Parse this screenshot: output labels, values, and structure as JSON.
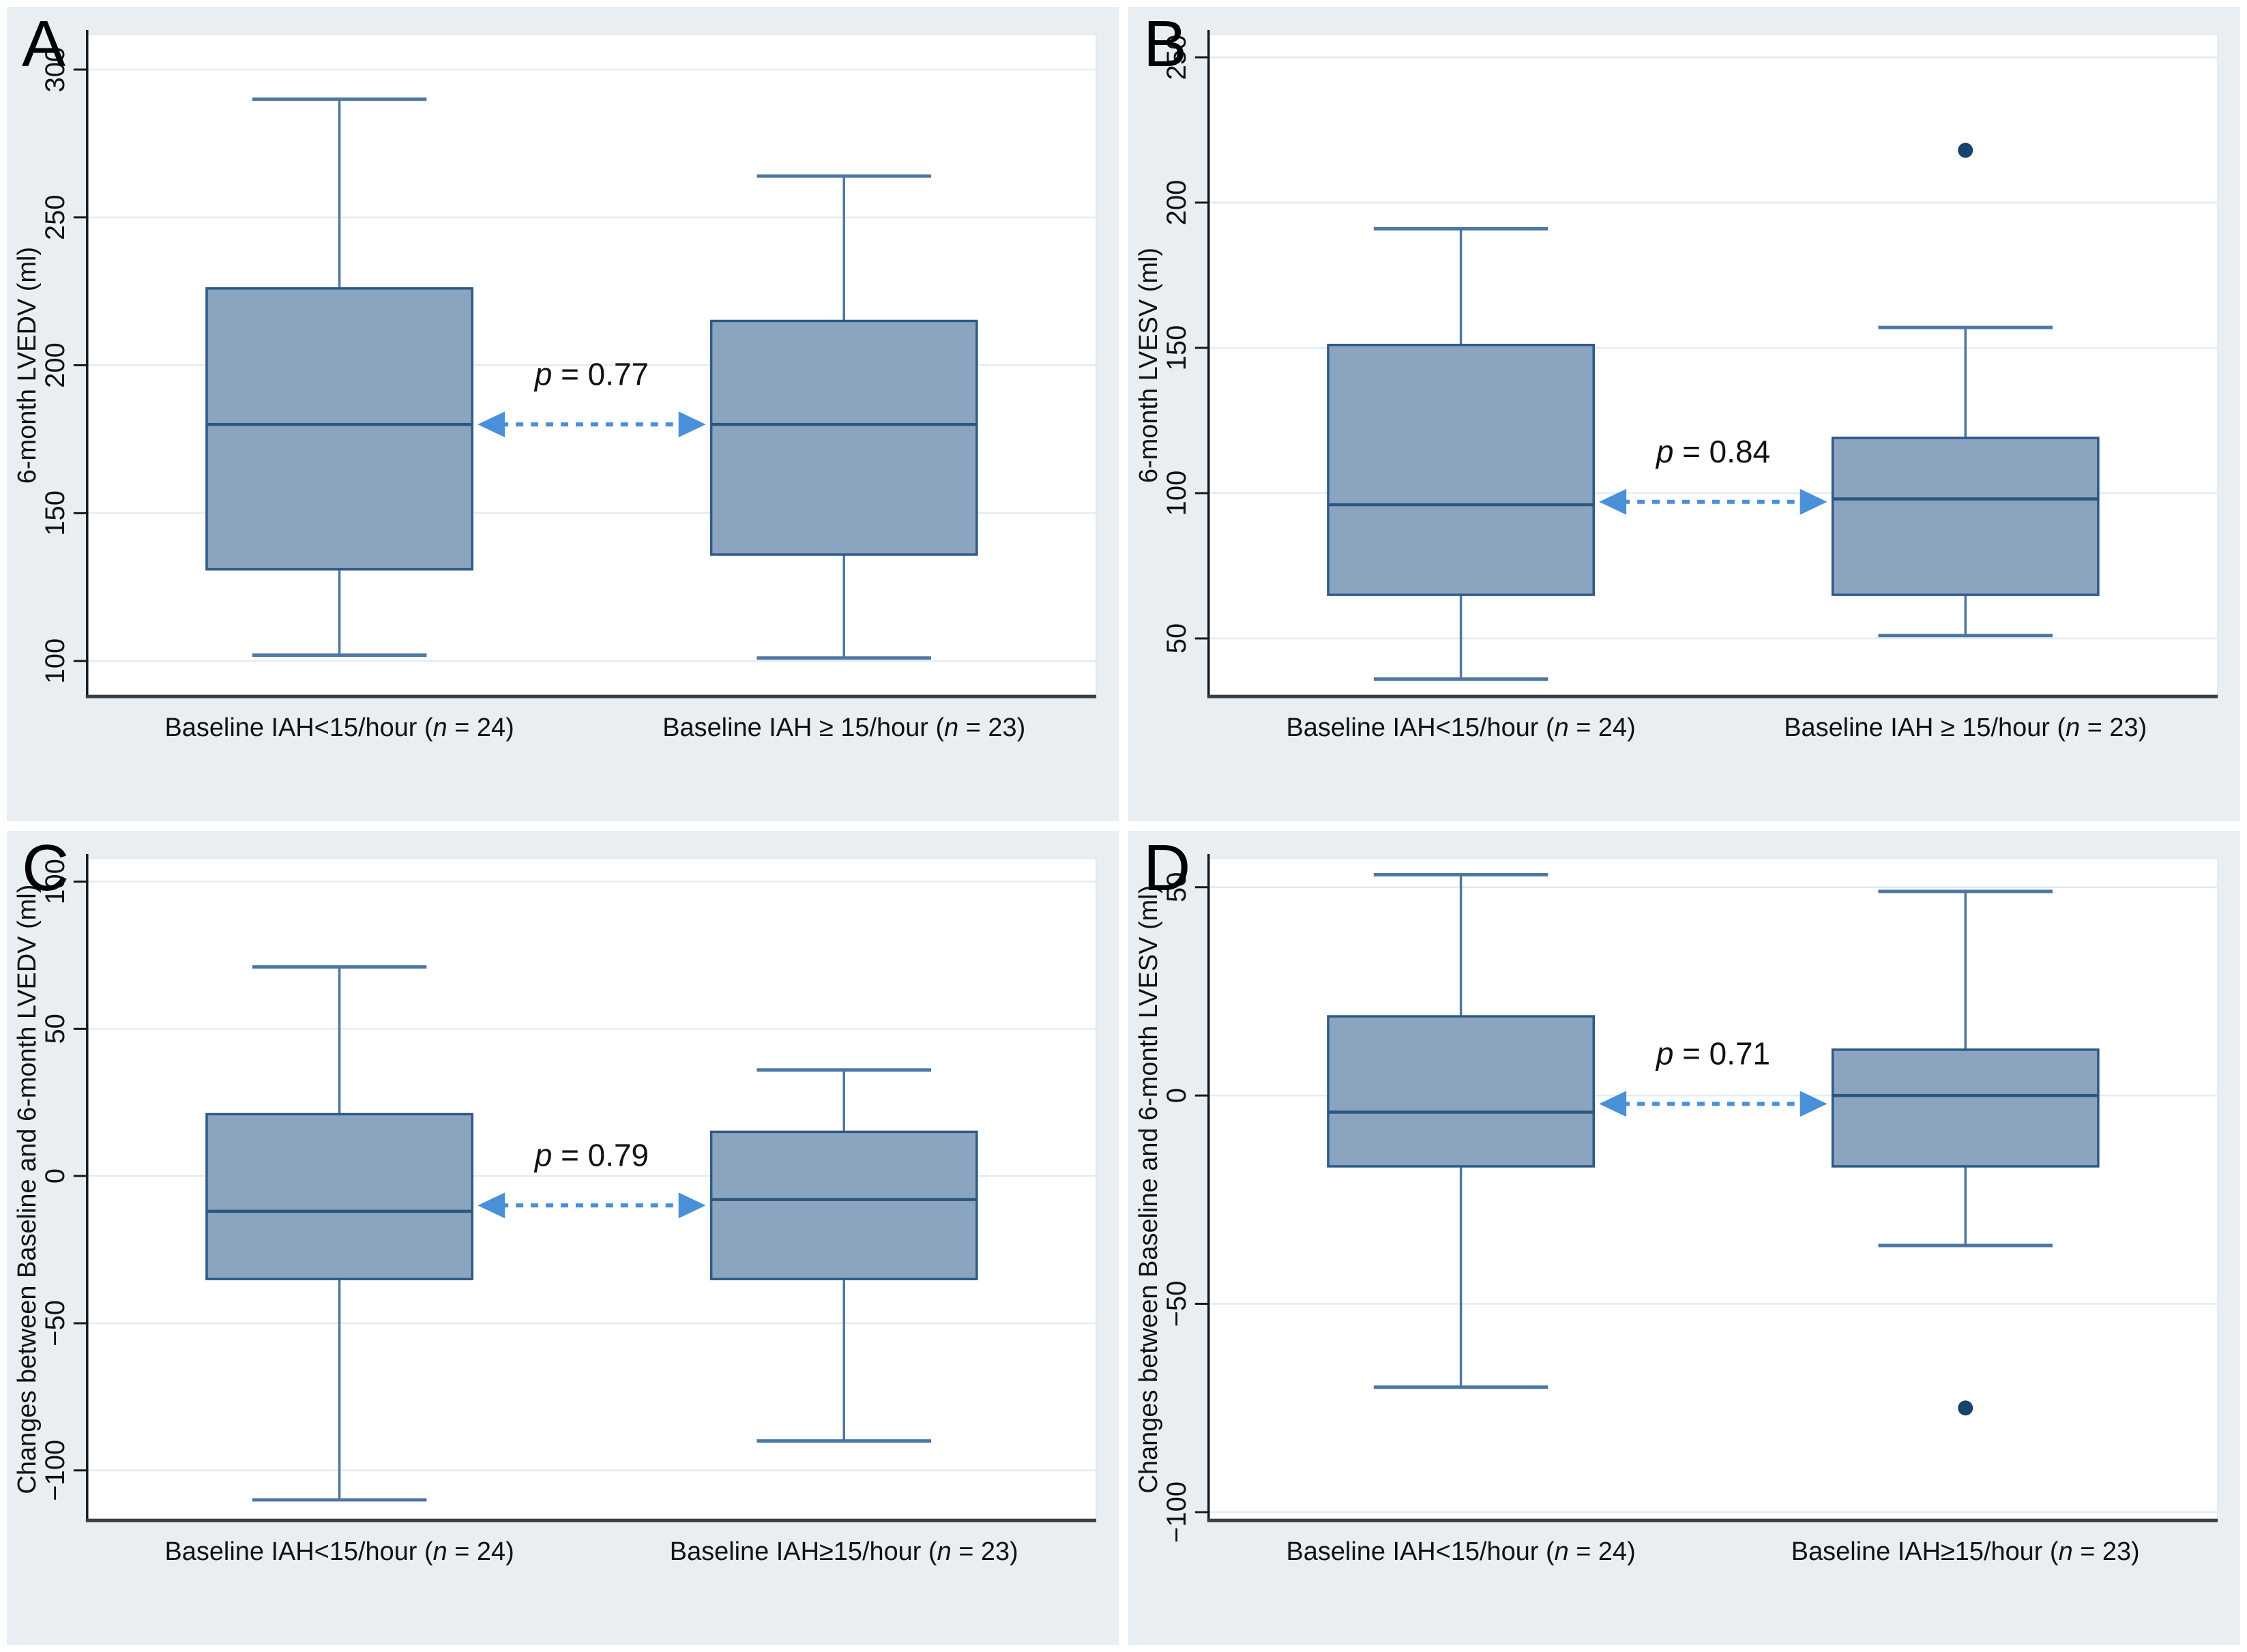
{
  "figure": {
    "panel_bg": "#e8eef2",
    "plot_bg": "#ffffff",
    "plot_border": "#e2eaf1",
    "grid_color": "#e2ecf3",
    "axis_color": "#1a1a1a",
    "xaxis_color": "#3d3d3d",
    "box_fill": "#8ba4c0",
    "box_stroke": "#2e5a87",
    "median_color": "#2b567f",
    "whisker_color": "#4d77a3",
    "outlier_color": "#16436b",
    "arrow_color": "#4a90d9",
    "text_color": "#111111"
  },
  "chart_data": [
    {
      "type": "boxplot",
      "panel": "A",
      "ylabel": "6-month LVEDV (ml)",
      "yticks": [
        300,
        250,
        200,
        150,
        100
      ],
      "ylim": [
        88,
        312
      ],
      "p_value": "0.77",
      "grid": true,
      "groups": [
        {
          "label_text": "Baseline IAH<15/hour",
          "n": "24",
          "whisker_low": 102,
          "q1": 131,
          "median": 180,
          "q3": 226,
          "whisker_high": 290,
          "outliers": []
        },
        {
          "label_text": "Baseline IAH ≥ 15/hour",
          "n": "23",
          "whisker_low": 101,
          "q1": 136,
          "median": 180,
          "q3": 215,
          "whisker_high": 264,
          "outliers": []
        }
      ]
    },
    {
      "type": "boxplot",
      "panel": "B",
      "ylabel": "6-month LVESV (ml)",
      "yticks": [
        250,
        200,
        150,
        100,
        50
      ],
      "ylim": [
        30,
        258
      ],
      "p_value": "0.84",
      "grid": true,
      "groups": [
        {
          "label_text": "Baseline IAH<15/hour",
          "n": "24",
          "whisker_low": 36,
          "q1": 65,
          "median": 96,
          "q3": 151,
          "whisker_high": 191,
          "outliers": []
        },
        {
          "label_text": "Baseline IAH ≥ 15/hour",
          "n": "23",
          "whisker_low": 51,
          "q1": 65,
          "median": 98,
          "q3": 119,
          "whisker_high": 157,
          "outliers": [
            218
          ]
        }
      ]
    },
    {
      "type": "boxplot",
      "panel": "C",
      "ylabel": "Changes between Baseline and 6-month LVEDV (ml)",
      "yticks": [
        100,
        50,
        0,
        -50,
        -100
      ],
      "ylim": [
        -117,
        108
      ],
      "p_value": "0.79",
      "grid": true,
      "groups": [
        {
          "label_text": "Baseline IAH<15/hour",
          "n": "24",
          "whisker_low": -110,
          "q1": -35,
          "median": -12,
          "q3": 21,
          "whisker_high": 71,
          "outliers": []
        },
        {
          "label_text": "Baseline IAH≥15/hour",
          "n": "23",
          "whisker_low": -90,
          "q1": -35,
          "median": -8,
          "q3": 15,
          "whisker_high": 36,
          "outliers": []
        }
      ]
    },
    {
      "type": "boxplot",
      "panel": "D",
      "ylabel": "Changes between Baseline and 6-month LVESV (ml)",
      "yticks": [
        50,
        0,
        -50,
        -100
      ],
      "ylim": [
        -102,
        57
      ],
      "p_value": "0.71",
      "grid": true,
      "groups": [
        {
          "label_text": "Baseline IAH<15/hour",
          "n": "24",
          "whisker_low": -70,
          "q1": -17,
          "median": -4,
          "q3": 19,
          "whisker_high": 53,
          "outliers": []
        },
        {
          "label_text": "Baseline IAH≥15/hour",
          "n": "23",
          "whisker_low": -36,
          "q1": -17,
          "median": 0,
          "q3": 11,
          "whisker_high": 49,
          "outliers": [
            -75
          ]
        }
      ]
    }
  ]
}
